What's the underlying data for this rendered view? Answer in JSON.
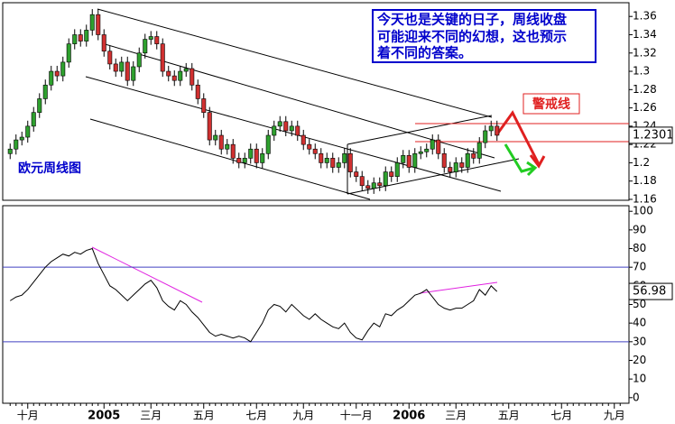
{
  "chart_data": [
    {
      "type": "candlestick",
      "title": "欧元周线图",
      "annotation": [
        "今天也是关键的日子，周线收盘",
        "可能迎来不同的幻想，这也预示",
        "着不同的答案。"
      ],
      "alert_label": "警戒线",
      "up_color": "#2ea02e",
      "down_color": "#d03030",
      "ylim": [
        1.159,
        1.375
      ],
      "yticks": [
        1.16,
        1.18,
        1.2,
        1.22,
        1.24,
        1.26,
        1.28,
        1.3,
        1.32,
        1.34,
        1.36
      ],
      "open": [
        1.21,
        1.215,
        1.225,
        1.228,
        1.24,
        1.255,
        1.27,
        1.285,
        1.3,
        1.295,
        1.31,
        1.33,
        1.34,
        1.333,
        1.345,
        1.362,
        1.34,
        1.322,
        1.308,
        1.3,
        1.31,
        1.29,
        1.305,
        1.32,
        1.335,
        1.338,
        1.33,
        1.3,
        1.295,
        1.29,
        1.3,
        1.303,
        1.285,
        1.27,
        1.255,
        1.225,
        1.23,
        1.215,
        1.22,
        1.205,
        1.2,
        1.205,
        1.215,
        1.2,
        1.21,
        1.23,
        1.24,
        1.245,
        1.235,
        1.24,
        1.23,
        1.22,
        1.215,
        1.21,
        1.2,
        1.205,
        1.195,
        1.2,
        1.21,
        1.19,
        1.185,
        1.175,
        1.172,
        1.178,
        1.175,
        1.19,
        1.185,
        1.2,
        1.208,
        1.195,
        1.21,
        1.212,
        1.215,
        1.225,
        1.21,
        1.195,
        1.19,
        1.2,
        1.195,
        1.21,
        1.205,
        1.222,
        1.235,
        1.24
      ],
      "high": [
        1.221,
        1.231,
        1.234,
        1.246,
        1.261,
        1.276,
        1.291,
        1.306,
        1.306,
        1.316,
        1.336,
        1.346,
        1.346,
        1.351,
        1.368,
        1.368,
        1.346,
        1.328,
        1.314,
        1.316,
        1.316,
        1.311,
        1.326,
        1.341,
        1.344,
        1.344,
        1.336,
        1.306,
        1.301,
        1.306,
        1.309,
        1.309,
        1.291,
        1.276,
        1.261,
        1.236,
        1.236,
        1.226,
        1.226,
        1.211,
        1.211,
        1.221,
        1.221,
        1.216,
        1.236,
        1.246,
        1.251,
        1.251,
        1.246,
        1.246,
        1.236,
        1.226,
        1.221,
        1.216,
        1.211,
        1.211,
        1.206,
        1.216,
        1.216,
        1.196,
        1.191,
        1.181,
        1.184,
        1.184,
        1.196,
        1.196,
        1.206,
        1.214,
        1.214,
        1.216,
        1.218,
        1.221,
        1.231,
        1.231,
        1.216,
        1.201,
        1.206,
        1.206,
        1.216,
        1.216,
        1.228,
        1.241,
        1.246,
        1.246
      ],
      "low": [
        1.204,
        1.209,
        1.219,
        1.222,
        1.234,
        1.249,
        1.264,
        1.279,
        1.289,
        1.289,
        1.304,
        1.324,
        1.327,
        1.327,
        1.339,
        1.334,
        1.316,
        1.302,
        1.294,
        1.294,
        1.284,
        1.284,
        1.299,
        1.314,
        1.329,
        1.324,
        1.294,
        1.289,
        1.284,
        1.284,
        1.294,
        1.279,
        1.264,
        1.249,
        1.219,
        1.219,
        1.209,
        1.209,
        1.199,
        1.194,
        1.194,
        1.199,
        1.194,
        1.194,
        1.204,
        1.224,
        1.234,
        1.229,
        1.229,
        1.224,
        1.214,
        1.209,
        1.204,
        1.194,
        1.194,
        1.189,
        1.189,
        1.194,
        1.184,
        1.179,
        1.169,
        1.166,
        1.166,
        1.169,
        1.169,
        1.179,
        1.179,
        1.194,
        1.189,
        1.189,
        1.204,
        1.206,
        1.209,
        1.204,
        1.189,
        1.184,
        1.184,
        1.189,
        1.189,
        1.199,
        1.199,
        1.216,
        1.229,
        1.224
      ],
      "close": [
        1.215,
        1.225,
        1.228,
        1.24,
        1.255,
        1.27,
        1.285,
        1.3,
        1.295,
        1.31,
        1.33,
        1.34,
        1.333,
        1.345,
        1.362,
        1.34,
        1.322,
        1.308,
        1.3,
        1.31,
        1.29,
        1.305,
        1.32,
        1.335,
        1.338,
        1.33,
        1.3,
        1.295,
        1.29,
        1.3,
        1.303,
        1.285,
        1.27,
        1.255,
        1.225,
        1.23,
        1.215,
        1.22,
        1.205,
        1.2,
        1.205,
        1.215,
        1.2,
        1.21,
        1.23,
        1.24,
        1.245,
        1.235,
        1.24,
        1.23,
        1.22,
        1.215,
        1.21,
        1.2,
        1.205,
        1.195,
        1.2,
        1.21,
        1.19,
        1.185,
        1.175,
        1.172,
        1.178,
        1.175,
        1.19,
        1.185,
        1.2,
        1.208,
        1.195,
        1.21,
        1.212,
        1.215,
        1.225,
        1.21,
        1.195,
        1.19,
        1.2,
        1.195,
        1.21,
        1.205,
        1.222,
        1.235,
        1.24,
        1.2301
      ]
    },
    {
      "type": "line",
      "color": "#000000",
      "categories": [
        null,
        null,
        null,
        "十月",
        null,
        null,
        null,
        null,
        null,
        null,
        null,
        null,
        null,
        null,
        null,
        null,
        "2005",
        null,
        null,
        null,
        null,
        null,
        null,
        null,
        "三月",
        null,
        null,
        null,
        null,
        null,
        null,
        null,
        null,
        "五月",
        null,
        null,
        null,
        null,
        null,
        null,
        null,
        null,
        "七月",
        null,
        null,
        null,
        null,
        null,
        null,
        null,
        "九月",
        null,
        null,
        null,
        null,
        null,
        null,
        null,
        null,
        "十一月",
        null,
        null,
        null,
        null,
        null,
        null,
        null,
        null,
        "2006",
        null,
        null,
        null,
        null,
        null,
        null,
        null,
        "三月",
        null,
        null,
        null,
        null,
        null,
        null,
        null,
        null,
        "五月",
        null,
        null,
        null,
        null,
        null,
        null,
        null,
        null,
        "七月",
        null,
        null,
        null,
        null,
        null,
        null,
        null,
        null,
        "九月",
        null
      ],
      "values": [
        52,
        54,
        55,
        58,
        62,
        66,
        70,
        73,
        75,
        77,
        76,
        78,
        77,
        79,
        80,
        72,
        66,
        60,
        58,
        55,
        52,
        55,
        58,
        61,
        63,
        59,
        52,
        49,
        47,
        52,
        50,
        46,
        43,
        39,
        35,
        33,
        34,
        33,
        32,
        33,
        32,
        30,
        35,
        40,
        47,
        50,
        49,
        46,
        50,
        47,
        44,
        42,
        45,
        42,
        40,
        38,
        37,
        40,
        35,
        32,
        31,
        36,
        40,
        38,
        45,
        44,
        47,
        49,
        52,
        55,
        56,
        58,
        54,
        50,
        48,
        47,
        48,
        48,
        50,
        52,
        58,
        55,
        60,
        56.98,
        null,
        null,
        null,
        null,
        null,
        null,
        null,
        null,
        null,
        null,
        null,
        null,
        null,
        null,
        null,
        null,
        null,
        null,
        null,
        null,
        null
      ],
      "ylim": [
        -3,
        103
      ],
      "yticks": [
        0,
        10,
        20,
        30,
        40,
        50,
        60,
        70,
        80,
        90,
        100
      ],
      "reference_lines": [
        70,
        30
      ],
      "reference_color": "#4040c0"
    }
  ]
}
